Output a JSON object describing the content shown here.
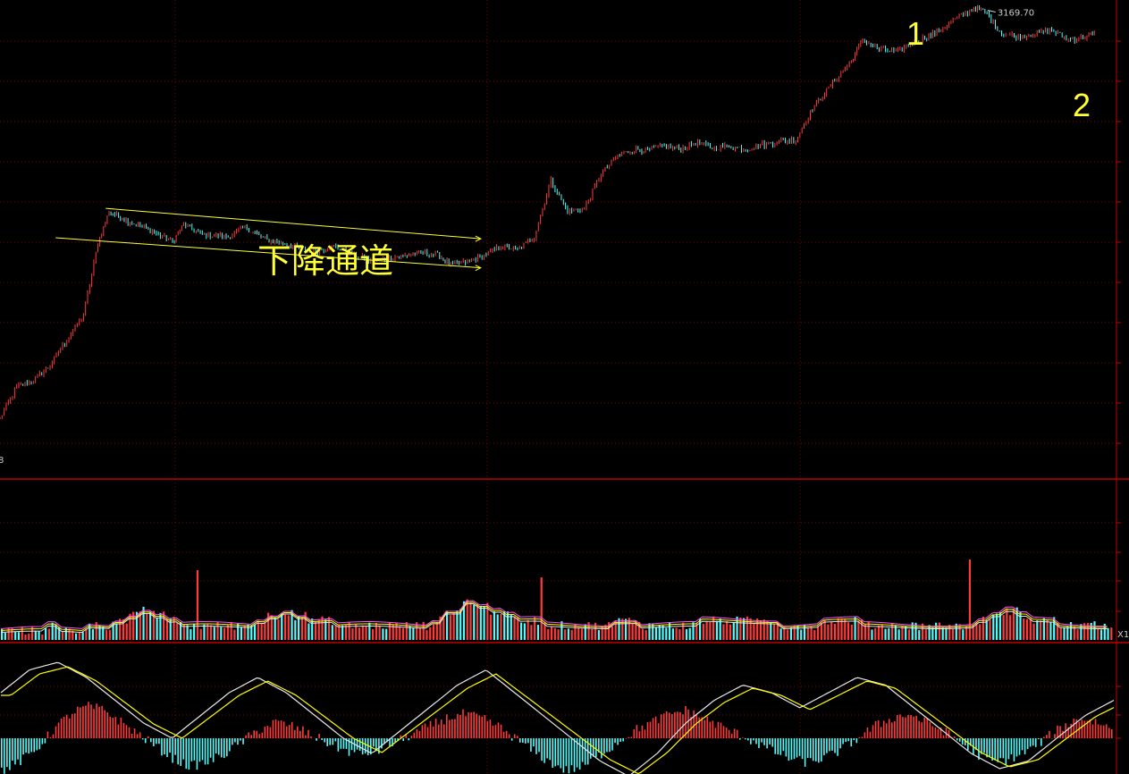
{
  "colors": {
    "background": "#000000",
    "grid": "#7a0000",
    "separator": "#c00000",
    "up": "#ff3b3b",
    "down": "#54fcfc",
    "annotation": "#ffff33",
    "ma_white": "#e8e8e8",
    "ma_yellow": "#ffff00",
    "ma_magenta": "#ff55ff"
  },
  "chart_data": [
    {
      "type": "line",
      "name": "price",
      "xlim": [
        0,
        100
      ],
      "ylim": [
        0,
        100
      ],
      "peak_value_label": "3169.70",
      "corner_label": "8",
      "annotations": [
        {
          "text": "下降通道",
          "role": "channel-title"
        },
        {
          "text": "1",
          "role": "marker"
        },
        {
          "text": "2",
          "role": "marker"
        }
      ],
      "channel": {
        "upper": [
          [
            9.5,
            75.1
          ],
          [
            43.2,
            65.4
          ]
        ],
        "lower": [
          [
            5.0,
            65.7
          ],
          [
            43.2,
            56.1
          ]
        ]
      },
      "price_points": [
        [
          0,
          8.0
        ],
        [
          1.5,
          18.0
        ],
        [
          3.0,
          20.0
        ],
        [
          4.5,
          25.0
        ],
        [
          6.0,
          33.0
        ],
        [
          7.5,
          41.0
        ],
        [
          8.8,
          64.0
        ],
        [
          9.8,
          74.0
        ],
        [
          11.5,
          71.0
        ],
        [
          13.5,
          68.0
        ],
        [
          15.5,
          64.5
        ],
        [
          16.5,
          70.0
        ],
        [
          18.0,
          67.0
        ],
        [
          20.5,
          66.0
        ],
        [
          22.0,
          69.0
        ],
        [
          24.0,
          65.0
        ],
        [
          26.5,
          63.0
        ],
        [
          28.0,
          61.0
        ],
        [
          30.0,
          63.0
        ],
        [
          32.0,
          60.0
        ],
        [
          33.5,
          58.0
        ],
        [
          35.5,
          59.5
        ],
        [
          38.0,
          61.0
        ],
        [
          39.5,
          60.0
        ],
        [
          40.5,
          57.0
        ],
        [
          42.0,
          58.0
        ],
        [
          43.5,
          60.0
        ],
        [
          45.0,
          63.0
        ],
        [
          46.5,
          62.0
        ],
        [
          48.0,
          66.0
        ],
        [
          49.5,
          84.0
        ],
        [
          51.0,
          74.0
        ],
        [
          52.5,
          75.0
        ],
        [
          54.0,
          86.0
        ],
        [
          55.5,
          92.0
        ],
        [
          57.0,
          94.0
        ],
        [
          58.0,
          93.5
        ],
        [
          59.5,
          95.0
        ],
        [
          61.0,
          94.0
        ],
        [
          62.5,
          96.0
        ],
        [
          64.0,
          94.5
        ],
        [
          65.5,
          95.0
        ],
        [
          67.0,
          94.0
        ],
        [
          68.5,
          95.5
        ],
        [
          70.0,
          96.5
        ],
        [
          71.5,
          97.0
        ],
        [
          73.0,
          107.0
        ],
        [
          75.0,
          116.0
        ],
        [
          76.5,
          122.0
        ],
        [
          77.5,
          129.0
        ],
        [
          79.0,
          126.0
        ],
        [
          80.5,
          125.0
        ],
        [
          82.0,
          128.0
        ],
        [
          84.0,
          131.0
        ],
        [
          86.0,
          136.0
        ],
        [
          87.5,
          139.0
        ],
        [
          88.5,
          138.0
        ],
        [
          90.0,
          131.0
        ],
        [
          91.5,
          130.0
        ],
        [
          93.0,
          131.0
        ],
        [
          94.5,
          132.0
        ],
        [
          96.0,
          129.0
        ],
        [
          97.5,
          130.0
        ],
        [
          98.5,
          131.0
        ]
      ]
    },
    {
      "type": "bar",
      "name": "volume",
      "values_seed": "volume",
      "corner_label": "X1",
      "series": [
        {
          "values": [
            1,
            1,
            1,
            2,
            1,
            1,
            2,
            2,
            3,
            4,
            5,
            4,
            3,
            2,
            2,
            2,
            2,
            2,
            3,
            4,
            5,
            4,
            3,
            3,
            2,
            2,
            2,
            2,
            2,
            2,
            2,
            3,
            5,
            7,
            6,
            5,
            4,
            3,
            3,
            2,
            2,
            2,
            2,
            2,
            3,
            3,
            2,
            2,
            2,
            2,
            3,
            3,
            3,
            3,
            3,
            3,
            2,
            2,
            2,
            3,
            3,
            3,
            2,
            2,
            2,
            2,
            2,
            2,
            2,
            2,
            3,
            4,
            5,
            4,
            3,
            3,
            2,
            2,
            2,
            2
          ]
        }
      ]
    },
    {
      "type": "bar",
      "name": "macd",
      "corner_label": "",
      "series": [
        {
          "values": [
            -0.8,
            -0.6,
            -0.3,
            0.2,
            0.6,
            0.8,
            0.7,
            0.4,
            0.1,
            -0.2,
            -0.5,
            -0.7,
            -0.6,
            -0.4,
            -0.1,
            0.2,
            0.4,
            0.3,
            0.1,
            -0.1,
            -0.3,
            -0.4,
            -0.3,
            -0.1,
            0.1,
            0.3,
            0.5,
            0.6,
            0.5,
            0.3,
            0.0,
            -0.3,
            -0.6,
            -0.8,
            -0.7,
            -0.4,
            -0.1,
            0.2,
            0.4,
            0.6,
            0.7,
            0.5,
            0.3,
            0.1,
            -0.1,
            -0.3,
            -0.5,
            -0.6,
            -0.5,
            -0.3,
            0.0,
            0.3,
            0.5,
            0.6,
            0.4,
            0.2,
            -0.1,
            -0.4,
            -0.6,
            -0.5,
            -0.3,
            0.0,
            0.3,
            0.5,
            0.4,
            0.2
          ]
        },
        {
          "values": [
            0.6,
            0.9,
            1.0,
            0.8,
            0.5,
            0.2,
            0.0,
            0.3,
            0.6,
            0.8,
            0.6,
            0.3,
            0.0,
            -0.2,
            0.1,
            0.4,
            0.7,
            0.9,
            0.6,
            0.3,
            0.0,
            -0.3,
            -0.5,
            -0.2,
            0.2,
            0.5,
            0.7,
            0.6,
            0.4,
            0.6,
            0.8,
            0.7,
            0.4,
            0.1,
            -0.2,
            -0.4,
            -0.3,
            0.0,
            0.3,
            0.5
          ]
        }
      ]
    }
  ]
}
